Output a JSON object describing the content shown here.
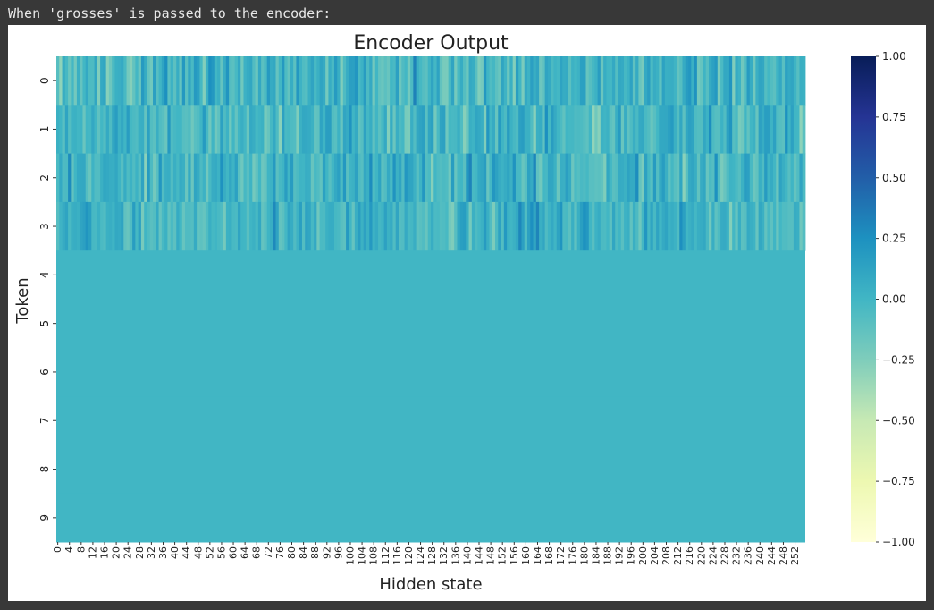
{
  "output_header": "When 'grosses' is passed to the encoder:",
  "chart_data": {
    "type": "heatmap",
    "title": "Encoder Output",
    "xlabel": "Hidden state",
    "ylabel": "Token",
    "n_cols": 256,
    "y_categories": [
      "0",
      "1",
      "2",
      "3",
      "4",
      "5",
      "6",
      "7",
      "8",
      "9"
    ],
    "x_tick_labels": [
      "0",
      "4",
      "8",
      "12",
      "16",
      "20",
      "24",
      "28",
      "32",
      "36",
      "40",
      "44",
      "48",
      "52",
      "56",
      "60",
      "64",
      "68",
      "72",
      "76",
      "80",
      "84",
      "88",
      "92",
      "96",
      "100",
      "104",
      "108",
      "112",
      "116",
      "120",
      "124",
      "128",
      "132",
      "136",
      "140",
      "144",
      "148",
      "152",
      "156",
      "160",
      "164",
      "168",
      "172",
      "176",
      "180",
      "184",
      "188",
      "192",
      "196",
      "200",
      "204",
      "208",
      "212",
      "216",
      "220",
      "224",
      "228",
      "232",
      "236",
      "240",
      "244",
      "248",
      "252"
    ],
    "colormap": "YlGnBu",
    "vmin": -1.0,
    "vmax": 1.0,
    "colorbar_ticks": [
      "1.00",
      "0.75",
      "0.50",
      "0.25",
      "0.00",
      "−0.25",
      "−0.50",
      "−0.75",
      "−1.00"
    ],
    "colorbar_tick_values": [
      1.0,
      0.75,
      0.5,
      0.25,
      0.0,
      -0.25,
      -0.5,
      -0.75,
      -1.0
    ],
    "colormap_stops": [
      "#ffffd9",
      "#edf8b1",
      "#c7e9b4",
      "#7fcdbb",
      "#41b6c4",
      "#1d91c0",
      "#225ea8",
      "#253494",
      "#081d58"
    ],
    "active_tokens": 4,
    "padding_value": 0.0,
    "value_range_active_rows": [
      -0.35,
      0.35
    ]
  }
}
